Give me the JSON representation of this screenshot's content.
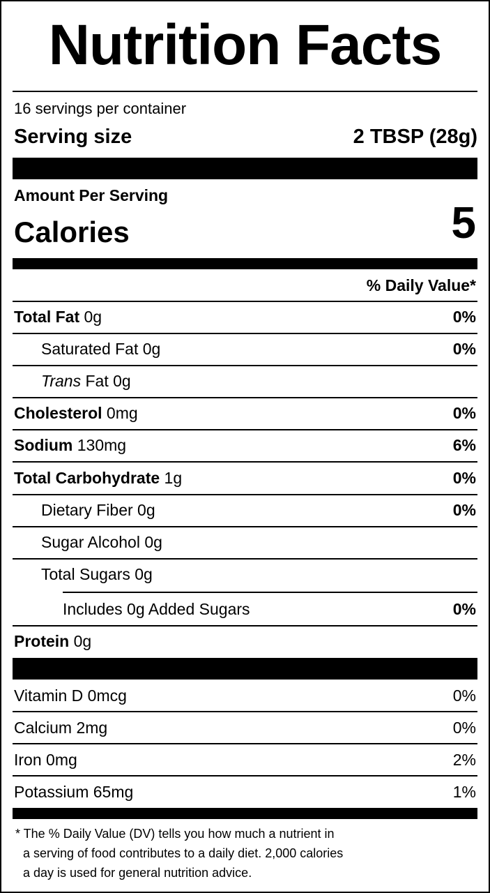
{
  "title": "Nutrition Facts",
  "servings": "16  servings per container",
  "serving_size": {
    "label": "Serving size",
    "value": "2 TBSP (28g)"
  },
  "amount_per_serving": "Amount Per Serving",
  "calories": {
    "label": "Calories",
    "value": "5"
  },
  "daily_value_header": "% Daily Value*",
  "nutrients": [
    {
      "name": "Total Fat",
      "amount": "0g",
      "dv": "0%",
      "bold": true,
      "level": 0
    },
    {
      "name": "Saturated Fat",
      "amount": "0g",
      "dv": "0%",
      "bold": false,
      "level": 1
    },
    {
      "prefix": "Trans",
      "name": "Fat",
      "amount": "0g",
      "bold": false,
      "level": 1
    },
    {
      "name": "Cholesterol",
      "amount": "0mg",
      "dv": "0%",
      "bold": true,
      "level": 0
    },
    {
      "name": "Sodium",
      "amount": "130mg",
      "dv": "6%",
      "bold": true,
      "level": 0
    },
    {
      "name": "Total Carbohydrate",
      "amount": "1g",
      "dv": "0%",
      "bold": true,
      "level": 0
    },
    {
      "name": "Dietary Fiber",
      "amount": "0g",
      "dv": "0%",
      "bold": false,
      "level": 1
    },
    {
      "name": "Sugar Alcohol",
      "amount": "0g",
      "bold": false,
      "level": 1
    },
    {
      "name": "Total Sugars",
      "amount": "0g",
      "bold": false,
      "level": 1
    },
    {
      "name": "Includes 0g Added Sugars",
      "dv": "0%",
      "bold": false,
      "level": 2
    },
    {
      "name": "Protein",
      "amount": "0g",
      "bold": true,
      "level": 0
    }
  ],
  "vitamins": [
    {
      "name": "Vitamin D 0mcg",
      "dv": "0%"
    },
    {
      "name": "Calcium 2mg",
      "dv": "0%"
    },
    {
      "name": "Iron 0mg",
      "dv": "2%"
    },
    {
      "name": "Potassium 65mg",
      "dv": "1%"
    }
  ],
  "footnote": [
    "* The % Daily Value (DV) tells you how much a nutrient in",
    "a serving of food contributes to a daily diet. 2,000 calories",
    "a day is used for general nutrition advice."
  ]
}
